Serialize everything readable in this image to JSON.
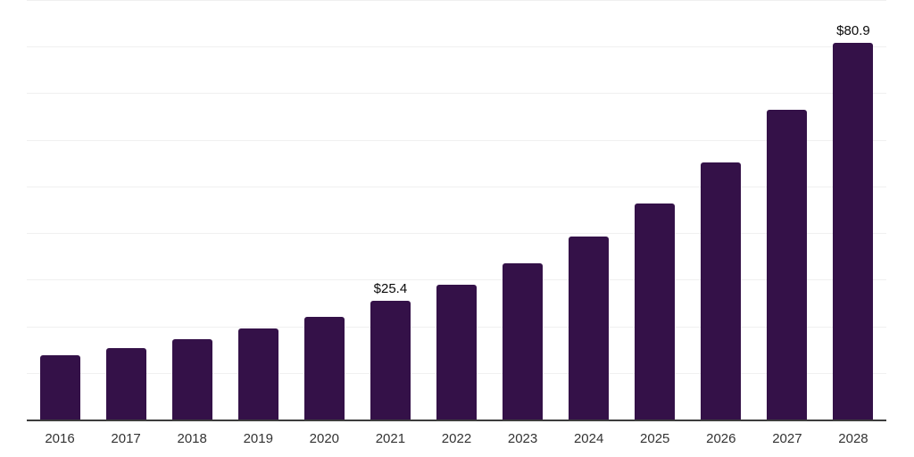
{
  "chart_data": {
    "type": "bar",
    "title": "",
    "xlabel": "",
    "ylabel": "",
    "categories": [
      "2016",
      "2017",
      "2018",
      "2019",
      "2020",
      "2021",
      "2022",
      "2023",
      "2024",
      "2025",
      "2026",
      "2027",
      "2028"
    ],
    "values": [
      13.7,
      15.3,
      17.2,
      19.5,
      22.1,
      25.4,
      28.9,
      33.5,
      39.2,
      46.4,
      55.1,
      66.4,
      80.9
    ],
    "bar_labels": {
      "2021": "$25.4",
      "2028": "$80.9"
    },
    "ylim": [
      0,
      90
    ],
    "gridline_step": 10,
    "grid": true,
    "legend": false,
    "y_axis_tick_labels_visible": false,
    "colors": {
      "bar": "#341148",
      "gridline": "#f0f0f0",
      "axis_line": "#3d3d3d",
      "tick_label": "#333333",
      "annotation": "#0a0a0a",
      "background": "#ffffff"
    }
  }
}
